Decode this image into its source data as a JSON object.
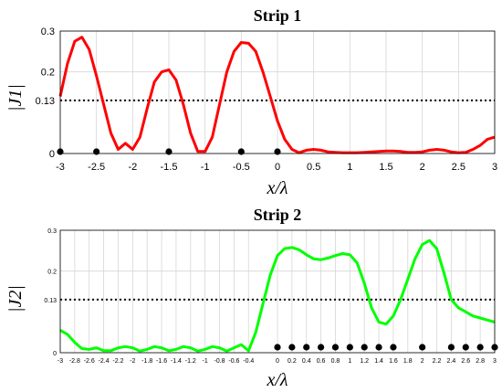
{
  "chart_data": [
    {
      "type": "line",
      "title": "Strip 1",
      "xlabel": "x/λ",
      "ylabel": "|J1|",
      "xlim": [
        -3,
        3
      ],
      "ylim": [
        0,
        0.3
      ],
      "x_ticks": [
        -3,
        -2.5,
        -2,
        -1.5,
        -1,
        -0.5,
        0,
        0.5,
        1,
        1.5,
        2,
        2.5,
        3
      ],
      "x_tick_labels": [
        "-3",
        "-2.5",
        "-2",
        "-1.5",
        "-1",
        "-0.5",
        "0",
        "0.5",
        "1",
        "1.5",
        "2",
        "2.5",
        "3"
      ],
      "y_ticks": [
        0,
        0.13,
        0.2,
        0.3
      ],
      "y_tick_labels": [
        "0",
        "0.13",
        "0.2",
        "0.3"
      ],
      "grid": true,
      "threshold": 0.13,
      "line_color": "#ff0000",
      "element_positions": [
        -3,
        -2.5,
        -1.5,
        -0.5,
        0
      ],
      "series": [
        {
          "x": [
            -3,
            -2.9,
            -2.8,
            -2.7,
            -2.6,
            -2.5,
            -2.4,
            -2.3,
            -2.2,
            -2.1,
            -2.0,
            -1.9,
            -1.8,
            -1.7,
            -1.6,
            -1.5,
            -1.4,
            -1.3,
            -1.2,
            -1.1,
            -1.0,
            -0.9,
            -0.8,
            -0.7,
            -0.6,
            -0.5,
            -0.4,
            -0.3,
            -0.2,
            -0.1,
            0.0,
            0.1,
            0.2,
            0.3,
            0.4,
            0.5,
            0.6,
            0.7,
            0.8,
            0.9,
            1.0,
            1.1,
            1.2,
            1.3,
            1.4,
            1.5,
            1.6,
            1.7,
            1.8,
            1.9,
            2.0,
            2.1,
            2.2,
            2.3,
            2.4,
            2.5,
            2.6,
            2.7,
            2.8,
            2.9,
            3.0
          ],
          "y": [
            0.14,
            0.22,
            0.275,
            0.285,
            0.255,
            0.19,
            0.12,
            0.05,
            0.01,
            0.025,
            0.01,
            0.04,
            0.11,
            0.175,
            0.2,
            0.205,
            0.18,
            0.12,
            0.05,
            0.005,
            0.005,
            0.04,
            0.12,
            0.2,
            0.25,
            0.272,
            0.27,
            0.25,
            0.2,
            0.14,
            0.08,
            0.035,
            0.01,
            0.002,
            0.008,
            0.01,
            0.008,
            0.004,
            0.003,
            0.002,
            0.002,
            0.002,
            0.003,
            0.004,
            0.005,
            0.006,
            0.006,
            0.005,
            0.003,
            0.003,
            0.004,
            0.008,
            0.01,
            0.008,
            0.004,
            0.002,
            0.003,
            0.01,
            0.02,
            0.035,
            0.04
          ]
        }
      ]
    },
    {
      "type": "line",
      "title": "Strip 2",
      "xlabel": "x/λ",
      "ylabel": "|J2|",
      "xlim": [
        -3,
        3
      ],
      "ylim": [
        0,
        0.3
      ],
      "x_ticks": [
        -3,
        -2.8,
        -2.6,
        -2.4,
        -2.2,
        -2,
        -1.8,
        -1.6,
        -1.4,
        -1.2,
        -1,
        -0.8,
        -0.6,
        -0.4,
        0,
        0.2,
        0.4,
        0.6,
        0.8,
        1,
        1.2,
        1.4,
        1.6,
        1.8,
        2,
        2.2,
        2.4,
        2.6,
        2.8,
        3
      ],
      "x_tick_labels": [
        "-3",
        "-2.8",
        "-2.6",
        "-2.4",
        "-2.2",
        "-2",
        "-1.8",
        "-1.6",
        "-1.4",
        "-1.2",
        "-1",
        "-0.8",
        "-0.6",
        "-0.4",
        "0",
        "0.2",
        "0.4",
        "0.6",
        "0.8",
        "1",
        "1.2",
        "1.4",
        "1.6",
        "1.8",
        "2",
        "2.2",
        "2.4",
        "2.6",
        "2.8",
        "3"
      ],
      "y_ticks": [
        0,
        0.13,
        0.2,
        0.3
      ],
      "y_tick_labels": [
        "0",
        "0.13",
        "0.2",
        "0.3"
      ],
      "grid": true,
      "threshold": 0.13,
      "line_color": "#00ff00",
      "element_positions": [
        0,
        0.2,
        0.4,
        0.6,
        0.8,
        1.0,
        1.2,
        1.4,
        1.6,
        2.0,
        2.4,
        2.6,
        2.8,
        3.0
      ],
      "series": [
        {
          "x": [
            -3,
            -2.9,
            -2.8,
            -2.7,
            -2.6,
            -2.5,
            -2.4,
            -2.3,
            -2.2,
            -2.1,
            -2.0,
            -1.9,
            -1.8,
            -1.7,
            -1.6,
            -1.5,
            -1.4,
            -1.3,
            -1.2,
            -1.1,
            -1.0,
            -0.9,
            -0.8,
            -0.7,
            -0.6,
            -0.5,
            -0.4,
            -0.3,
            -0.2,
            -0.1,
            0.0,
            0.1,
            0.2,
            0.3,
            0.4,
            0.5,
            0.6,
            0.7,
            0.8,
            0.9,
            1.0,
            1.1,
            1.2,
            1.3,
            1.4,
            1.5,
            1.6,
            1.7,
            1.8,
            1.9,
            2.0,
            2.1,
            2.2,
            2.3,
            2.4,
            2.5,
            2.6,
            2.7,
            2.8,
            2.9,
            3.0
          ],
          "y": [
            0.055,
            0.045,
            0.025,
            0.01,
            0.008,
            0.012,
            0.005,
            0.005,
            0.012,
            0.015,
            0.012,
            0.004,
            0.008,
            0.015,
            0.012,
            0.005,
            0.008,
            0.015,
            0.012,
            0.004,
            0.008,
            0.015,
            0.012,
            0.004,
            0.012,
            0.02,
            0.005,
            0.05,
            0.12,
            0.19,
            0.238,
            0.255,
            0.258,
            0.252,
            0.24,
            0.23,
            0.228,
            0.232,
            0.238,
            0.243,
            0.24,
            0.22,
            0.17,
            0.11,
            0.075,
            0.07,
            0.09,
            0.13,
            0.18,
            0.23,
            0.265,
            0.275,
            0.255,
            0.195,
            0.13,
            0.11,
            0.1,
            0.09,
            0.085,
            0.08,
            0.075
          ]
        }
      ]
    }
  ]
}
